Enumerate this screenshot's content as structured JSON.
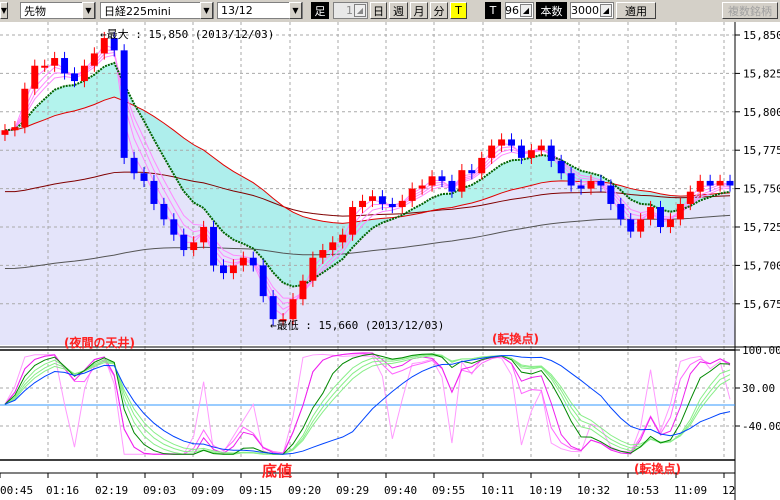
{
  "toolbar": {
    "market": "先物",
    "product": "日経225mini",
    "contract": "13/12",
    "bar_label": "足",
    "bar_count": "1",
    "periods": [
      "日",
      "週",
      "月",
      "分",
      "T"
    ],
    "active_period": "T",
    "t_label": "T",
    "t_value": "96",
    "count_label": "本数",
    "count_value": "3000",
    "apply": "適用",
    "multi": "複数銘柄"
  },
  "annotations": {
    "max": "←最大 : 15,850 (2013/12/03)",
    "min": "←最低 : 15,660 (2013/12/03)",
    "night_top": "(夜間の天井)",
    "turn1": "(転換点)",
    "bottom": "底値",
    "turn2": "(転換点)"
  },
  "colors": {
    "up": "#ff0000",
    "down": "#0000ff",
    "ma_green": "#006400",
    "ma_red": "#e00000",
    "ma_darkred": "#800000",
    "ma_gray": "#555555",
    "fill_cyan": "#a0f0e8",
    "fill_lavender": "#e4e4fa"
  },
  "chart_data": {
    "type": "candlestick",
    "price_axis": {
      "ticks": [
        "15,850",
        "15,825",
        "15,800",
        "15,775",
        "15,750",
        "15,725",
        "15,700",
        "15,675"
      ],
      "range": [
        15645,
        15870
      ]
    },
    "oscillator_axis": {
      "ticks": [
        "100.00",
        "30.00",
        "-40.00"
      ],
      "range": [
        -100,
        100
      ]
    },
    "time_labels": [
      "00:45",
      "01:16",
      "02:19",
      "09:03",
      "09:09",
      "09:15",
      "09:20",
      "09:29",
      "09:40",
      "09:55",
      "10:11",
      "10:19",
      "10:32",
      "10:53",
      "11:09",
      "12"
    ],
    "closes": [
      15788,
      15790,
      15815,
      15830,
      15830,
      15835,
      15825,
      15820,
      15830,
      15838,
      15848,
      15840,
      15770,
      15760,
      15755,
      15740,
      15730,
      15720,
      15710,
      15715,
      15725,
      15700,
      15695,
      15700,
      15705,
      15700,
      15680,
      15665,
      15665,
      15678,
      15690,
      15705,
      15710,
      15715,
      15720,
      15738,
      15742,
      15745,
      15740,
      15738,
      15742,
      15750,
      15752,
      15758,
      15755,
      15748,
      15762,
      15760,
      15770,
      15778,
      15782,
      15778,
      15770,
      15775,
      15778,
      15768,
      15760,
      15752,
      15750,
      15755,
      15752,
      15740,
      15730,
      15722,
      15730,
      15738,
      15725,
      15730,
      15740,
      15748,
      15755,
      15752,
      15755,
      15752
    ]
  }
}
